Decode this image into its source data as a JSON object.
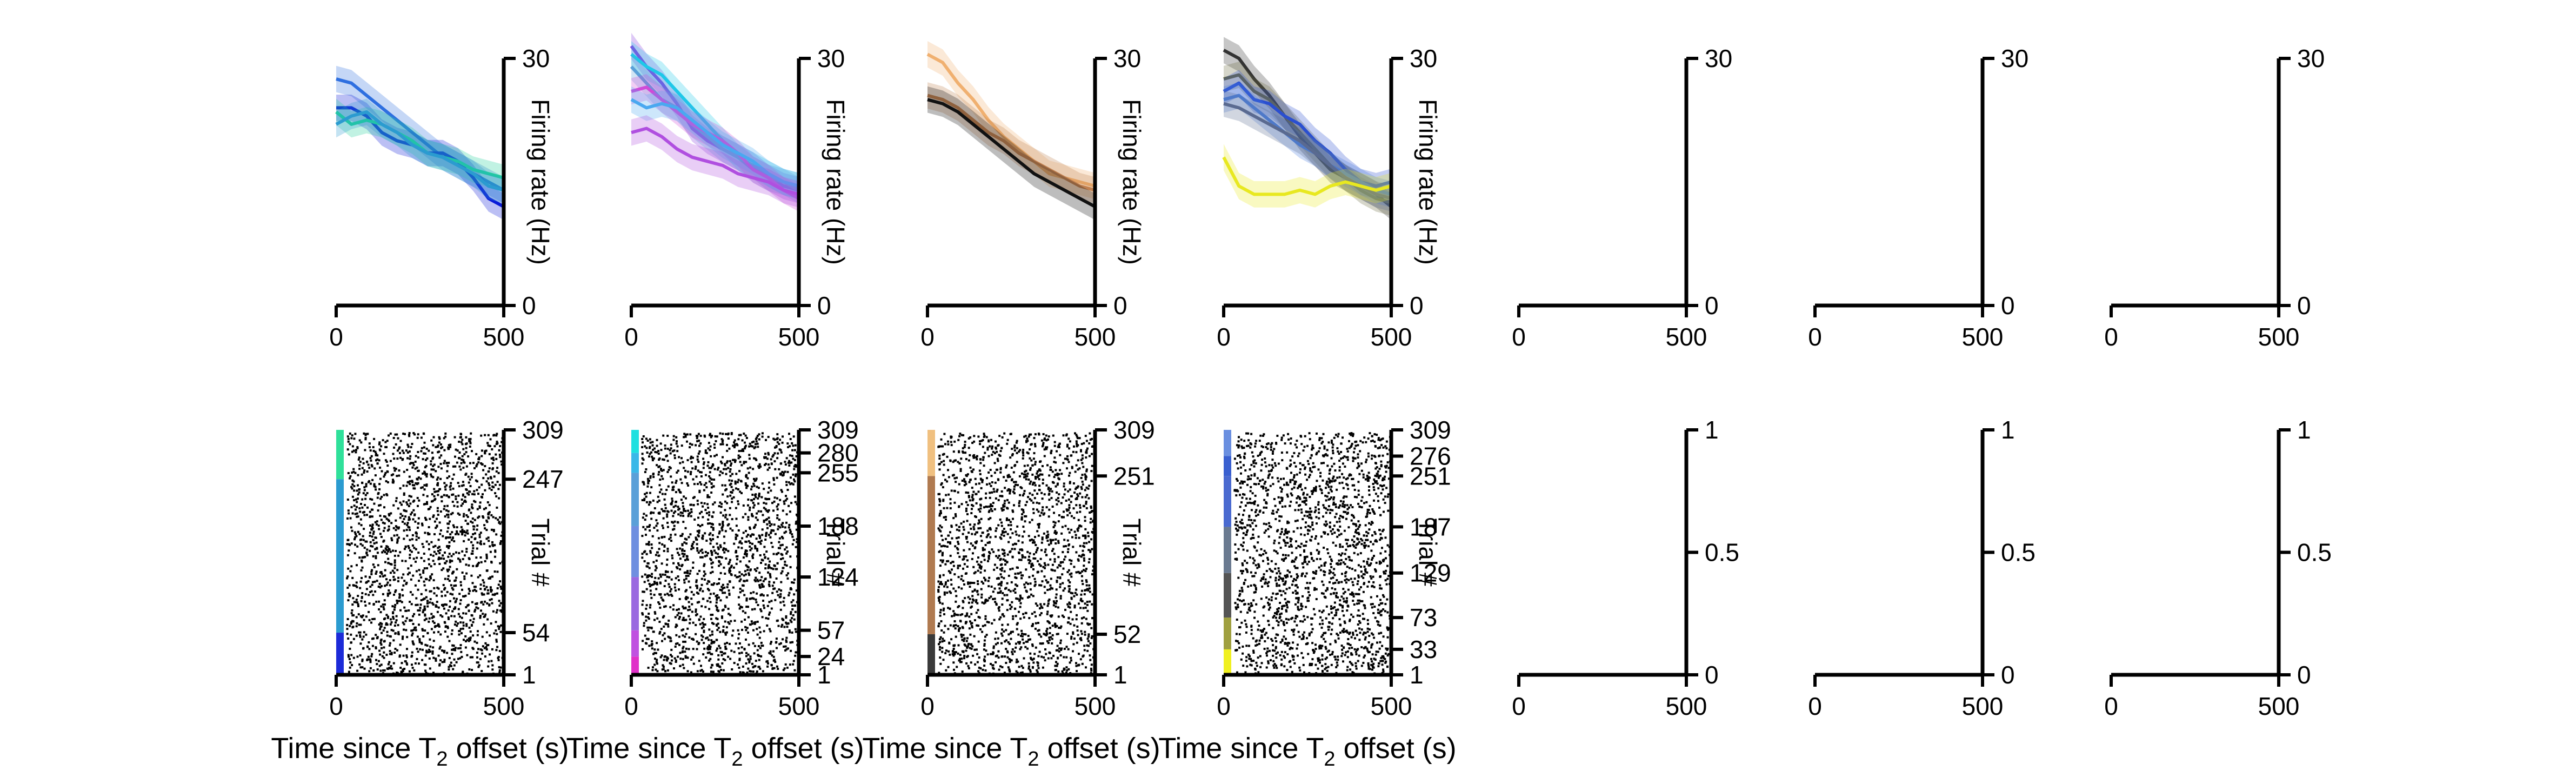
{
  "figure": {
    "xlabel_text": "Time since T",
    "xlabel_sub": "2",
    "xlabel_tail": " offset (s)"
  },
  "chart_data": {
    "type": "line",
    "panel_groups": [
      {
        "id": 0,
        "rate": {
          "xlim": [
            0,
            500
          ],
          "ylim": [
            0,
            30
          ],
          "xticks": [
            "0",
            "500"
          ],
          "yticks": [
            "0",
            "30"
          ],
          "ylabel": "Firing rate (Hz)",
          "series": [
            {
              "color": "#2e6fe0",
              "values": [
                27.5,
                27.0,
                25.5,
                24.0,
                22.5,
                21.0,
                19.5,
                18.0,
                17.0,
                16.0,
                15.0,
                14.0
              ]
            },
            {
              "color": "#0a1ad8",
              "values": [
                24.0,
                24.0,
                23.0,
                21.0,
                20.0,
                19.5,
                18.5,
                18.5,
                17.5,
                15.5,
                13.0,
                12.0
              ]
            },
            {
              "color": "#1fd19a",
              "values": [
                23.5,
                22.0,
                22.5,
                22.0,
                21.0,
                20.0,
                18.5,
                18.0,
                17.5,
                16.5,
                16.0,
                15.5
              ]
            },
            {
              "color": "#2b9bd0",
              "values": [
                22.0,
                23.0,
                23.5,
                22.0,
                21.0,
                19.5,
                18.5,
                18.0,
                17.0,
                16.0,
                14.5,
                14.0
              ]
            }
          ]
        },
        "raster": {
          "xlim": [
            0,
            500
          ],
          "ylim": [
            1,
            309
          ],
          "xticks": [
            "0",
            "500"
          ],
          "yticks": [
            "1",
            "54",
            "247",
            "309"
          ],
          "ylabel": "Trial #",
          "segments": [
            {
              "from": 1,
              "to": 54,
              "color": "#1c2bd8"
            },
            {
              "from": 54,
              "to": 247,
              "color": "#2b9bd0"
            },
            {
              "from": 247,
              "to": 309,
              "color": "#2fe09a"
            }
          ]
        }
      },
      {
        "id": 1,
        "rate": {
          "xlim": [
            0,
            500
          ],
          "ylim": [
            0,
            30
          ],
          "xticks": [
            "0",
            "500"
          ],
          "yticks": [
            "0",
            "30"
          ],
          "ylabel": "Firing rate (Hz)",
          "series": [
            {
              "color": "#8a3de0",
              "values": [
                31.5,
                29.0,
                27.0,
                24.5,
                21.5,
                20.0,
                19.0,
                18.0,
                17.0,
                15.5,
                14.5,
                14.0
              ]
            },
            {
              "color": "#1ec8e8",
              "values": [
                30.5,
                29.0,
                28.0,
                26.0,
                24.0,
                22.0,
                20.0,
                18.0,
                17.0,
                16.0,
                15.0,
                14.5
              ]
            },
            {
              "color": "#5aa0d8",
              "values": [
                29.0,
                27.0,
                25.0,
                24.0,
                22.0,
                20.5,
                19.0,
                18.0,
                16.5,
                15.5,
                15.0,
                14.0
              ]
            },
            {
              "color": "#d04ad8",
              "values": [
                26.0,
                26.5,
                25.0,
                23.5,
                22.0,
                21.0,
                20.0,
                18.5,
                16.5,
                15.5,
                14.0,
                13.0
              ]
            },
            {
              "color": "#4aa8f0",
              "values": [
                25.0,
                24.0,
                24.5,
                24.0,
                22.5,
                21.0,
                19.5,
                18.5,
                17.5,
                16.0,
                15.0,
                14.5
              ]
            },
            {
              "color": "#b04fe0",
              "values": [
                21.0,
                21.5,
                20.5,
                19.0,
                18.0,
                17.5,
                17.0,
                16.0,
                15.5,
                15.0,
                14.0,
                13.5
              ]
            }
          ]
        },
        "raster": {
          "xlim": [
            0,
            500
          ],
          "ylim": [
            1,
            309
          ],
          "xticks": [
            "0",
            "500"
          ],
          "yticks": [
            "1",
            "24",
            "57",
            "124",
            "188",
            "255",
            "280",
            "309"
          ],
          "ylabel": "Trial #",
          "segments": [
            {
              "from": 1,
              "to": 24,
              "color": "#e030c8"
            },
            {
              "from": 24,
              "to": 57,
              "color": "#c050e0"
            },
            {
              "from": 57,
              "to": 124,
              "color": "#9a6ae0"
            },
            {
              "from": 124,
              "to": 188,
              "color": "#6f8fe0"
            },
            {
              "from": 188,
              "to": 255,
              "color": "#5aa0d8"
            },
            {
              "from": 255,
              "to": 280,
              "color": "#3ab8e8"
            },
            {
              "from": 280,
              "to": 309,
              "color": "#1ee0e0"
            }
          ]
        }
      },
      {
        "id": 2,
        "rate": {
          "xlim": [
            0,
            500
          ],
          "ylim": [
            0,
            30
          ],
          "xticks": [
            "0",
            "500"
          ],
          "yticks": [
            "0",
            "30"
          ],
          "ylabel": "Firing rate (Hz)",
          "series": [
            {
              "color": "#f0b070",
              "values": [
                30.5,
                29.5,
                27.0,
                25.0,
                22.5,
                20.5,
                19.0,
                17.5,
                16.0,
                15.5,
                15.0,
                14.5
              ]
            },
            {
              "color": "#c08050",
              "values": [
                25.5,
                25.0,
                24.0,
                22.5,
                21.0,
                20.0,
                18.5,
                17.5,
                16.5,
                15.5,
                14.5,
                14.0
              ]
            },
            {
              "color": "#111111",
              "values": [
                25.0,
                24.5,
                23.5,
                22.0,
                20.5,
                19.0,
                17.5,
                16.0,
                15.0,
                14.0,
                13.0,
                12.0
              ]
            }
          ]
        },
        "raster": {
          "xlim": [
            0,
            500
          ],
          "ylim": [
            1,
            309
          ],
          "xticks": [
            "0",
            "500"
          ],
          "yticks": [
            "1",
            "52",
            "251",
            "309"
          ],
          "ylabel": "Trial #",
          "segments": [
            {
              "from": 1,
              "to": 52,
              "color": "#3a3a3a"
            },
            {
              "from": 52,
              "to": 251,
              "color": "#b07a50"
            },
            {
              "from": 251,
              "to": 309,
              "color": "#f0c080"
            }
          ]
        }
      },
      {
        "id": 3,
        "rate": {
          "xlim": [
            0,
            500
          ],
          "ylim": [
            0,
            30
          ],
          "xticks": [
            "0",
            "500"
          ],
          "yticks": [
            "0",
            "30"
          ],
          "ylabel": "Firing rate (Hz)",
          "series": [
            {
              "color": "#333333",
              "values": [
                31.0,
                30.0,
                27.5,
                25.5,
                23.0,
                20.5,
                18.5,
                16.5,
                15.5,
                14.5,
                13.5,
                12.0
              ]
            },
            {
              "color": "#6b6b40",
              "values": [
                27.5,
                28.0,
                26.0,
                25.0,
                23.0,
                21.0,
                19.0,
                17.0,
                15.5,
                14.0,
                13.0,
                12.5
              ]
            },
            {
              "color": "#2a4fd0",
              "values": [
                26.0,
                27.0,
                25.0,
                24.5,
                23.0,
                22.0,
                20.0,
                18.5,
                16.5,
                15.0,
                14.5,
                15.0
              ]
            },
            {
              "color": "#4a7fe0",
              "values": [
                25.0,
                25.5,
                24.0,
                22.5,
                21.0,
                19.5,
                18.5,
                17.0,
                16.0,
                15.0,
                14.0,
                13.5
              ]
            },
            {
              "color": "#5a6a90",
              "values": [
                24.5,
                24.0,
                23.0,
                22.0,
                21.0,
                20.0,
                18.5,
                17.0,
                15.5,
                14.5,
                13.5,
                13.0
              ]
            },
            {
              "color": "#e8e820",
              "values": [
                18.0,
                14.5,
                13.5,
                13.5,
                13.5,
                14.0,
                13.5,
                14.5,
                15.0,
                14.5,
                14.0,
                14.5
              ]
            }
          ]
        },
        "raster": {
          "xlim": [
            0,
            500
          ],
          "ylim": [
            1,
            309
          ],
          "xticks": [
            "0",
            "500"
          ],
          "yticks": [
            "1",
            "33",
            "73",
            "129",
            "187",
            "251",
            "276",
            "309"
          ],
          "ylabel": "Trial #",
          "segments": [
            {
              "from": 1,
              "to": 33,
              "color": "#f0f020"
            },
            {
              "from": 33,
              "to": 73,
              "color": "#a0a040"
            },
            {
              "from": 73,
              "to": 129,
              "color": "#555555"
            },
            {
              "from": 129,
              "to": 187,
              "color": "#6a7a90"
            },
            {
              "from": 187,
              "to": 251,
              "color": "#4a6ad0"
            },
            {
              "from": 251,
              "to": 276,
              "color": "#3a60d0"
            },
            {
              "from": 276,
              "to": 309,
              "color": "#6a8fe0"
            }
          ]
        }
      },
      {
        "id": 4,
        "rate": {
          "xlim": [
            0,
            500
          ],
          "ylim": [
            0,
            30
          ],
          "xticks": [
            "0",
            "500"
          ],
          "yticks": [
            "0",
            "30"
          ],
          "ylabel": "",
          "series": []
        },
        "raster": {
          "xlim": [
            0,
            500
          ],
          "ylim": [
            0,
            1
          ],
          "xticks": [
            "0",
            "500"
          ],
          "yticks": [
            "0",
            "0.5",
            "1"
          ],
          "ylabel": "",
          "segments": []
        }
      },
      {
        "id": 5,
        "rate": {
          "xlim": [
            0,
            500
          ],
          "ylim": [
            0,
            30
          ],
          "xticks": [
            "0",
            "500"
          ],
          "yticks": [
            "0",
            "30"
          ],
          "ylabel": "",
          "series": []
        },
        "raster": {
          "xlim": [
            0,
            500
          ],
          "ylim": [
            0,
            1
          ],
          "xticks": [
            "0",
            "500"
          ],
          "yticks": [
            "0",
            "0.5",
            "1"
          ],
          "ylabel": "",
          "segments": []
        }
      },
      {
        "id": 6,
        "rate": {
          "xlim": [
            0,
            500
          ],
          "ylim": [
            0,
            30
          ],
          "xticks": [
            "0",
            "500"
          ],
          "yticks": [
            "0",
            "30"
          ],
          "ylabel": "",
          "series": []
        },
        "raster": {
          "xlim": [
            0,
            500
          ],
          "ylim": [
            0,
            1
          ],
          "xticks": [
            "0",
            "500"
          ],
          "yticks": [
            "0",
            "0.5",
            "1"
          ],
          "ylabel": "",
          "segments": []
        }
      }
    ]
  }
}
